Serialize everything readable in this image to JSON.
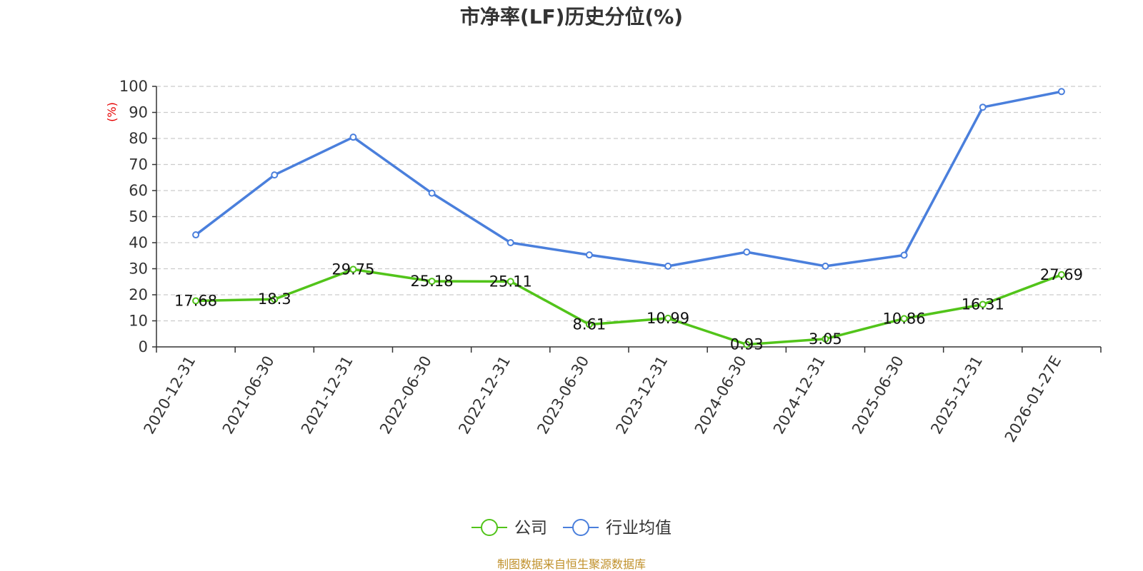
{
  "colors": {
    "company": "#52c41a",
    "industry": "#4a7fdc",
    "unit": "#e60000",
    "source": "#c0902a",
    "grid": "#cccccc",
    "axis": "#333333"
  },
  "chart_data": {
    "type": "line",
    "title": "市净率(LF)历史分位(%)",
    "ylabel": "(%)",
    "xlabel": "",
    "ylim": [
      0,
      100
    ],
    "yticks": [
      0,
      10,
      20,
      30,
      40,
      50,
      60,
      70,
      80,
      90,
      100
    ],
    "grid": true,
    "legend_position": "bottom-center",
    "categories": [
      "2020-12-31",
      "2021-06-30",
      "2021-12-31",
      "2022-06-30",
      "2022-12-31",
      "2023-06-30",
      "2023-12-31",
      "2024-06-30",
      "2024-12-31",
      "2025-06-30",
      "2025-12-31",
      "2026-01-27E"
    ],
    "series": [
      {
        "name": "公司",
        "color_key": "company",
        "values": [
          17.68,
          18.3,
          29.75,
          25.18,
          25.11,
          8.61,
          10.99,
          0.93,
          3.05,
          10.86,
          16.31,
          27.69
        ],
        "labels": [
          "17.68",
          "18.3",
          "29.75",
          "25.18",
          "25.11",
          "8.61",
          "10.99",
          "0.93",
          "3.05",
          "10.86",
          "16.31",
          "27.69"
        ]
      },
      {
        "name": "行业均值",
        "color_key": "industry",
        "values": [
          43,
          66,
          80.5,
          59,
          40,
          35.3,
          31,
          36.4,
          31,
          35.2,
          92,
          98
        ]
      }
    ],
    "source": "制图数据来自恒生聚源数据库"
  }
}
